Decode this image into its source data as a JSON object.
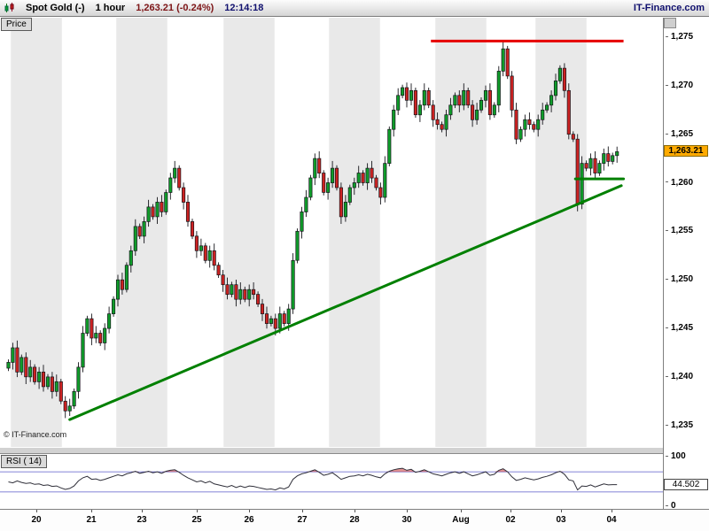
{
  "header": {
    "instrument": "Spot Gold (-)",
    "timeframe": "1 hour",
    "last_price": "1,263.21 (-0.24%)",
    "time": "12:14:18",
    "brand": "IT-Finance.com"
  },
  "price_panel": {
    "tab_label": "Price",
    "watermark": "© IT-Finance.com",
    "axis_ticks": [
      "1,275",
      "1,270",
      "1,265",
      "1,260",
      "1,255",
      "1,250",
      "1,245",
      "1,240",
      "1,235"
    ],
    "price_badge": "1,263.21"
  },
  "rsi_panel": {
    "tab_label": "RSI ( 14)",
    "axis_top": "100",
    "axis_bottom": "0",
    "value_badge": "44.502"
  },
  "colors": {
    "badge_bg": "#ffaa00",
    "brand_text": "#10106e",
    "change_text": "#7d1416"
  },
  "chart_data": {
    "type": "candlestick",
    "title": "Spot Gold (-) 1 hour",
    "last_price": 1263.21,
    "y_ticks": [
      1275,
      1270,
      1265,
      1260,
      1255,
      1250,
      1245,
      1240,
      1235
    ],
    "ylim": [
      1233.5,
      1277
    ],
    "x_ticks": [
      "20",
      "21",
      "23",
      "25",
      "26",
      "27",
      "28",
      "30",
      "Aug",
      "02",
      "03",
      "04"
    ],
    "closes": [
      1241.5,
      1243.0,
      1240.5,
      1242.0,
      1240.0,
      1241.0,
      1239.5,
      1240.5,
      1239.0,
      1240.0,
      1238.5,
      1239.5,
      1237.5,
      1236.5,
      1237.0,
      1238.5,
      1241.0,
      1244.5,
      1246.0,
      1244.0,
      1244.5,
      1243.5,
      1245.0,
      1246.5,
      1248.0,
      1250.0,
      1249.0,
      1251.5,
      1253.0,
      1255.5,
      1254.5,
      1256.0,
      1257.5,
      1256.5,
      1258.0,
      1257.0,
      1259.0,
      1260.5,
      1261.5,
      1259.5,
      1258.0,
      1256.0,
      1254.5,
      1253.0,
      1253.5,
      1252.0,
      1253.0,
      1251.5,
      1250.5,
      1249.5,
      1248.5,
      1249.5,
      1248.0,
      1249.0,
      1248.0,
      1249.0,
      1248.5,
      1247.5,
      1246.5,
      1245.5,
      1246.0,
      1245.0,
      1246.5,
      1245.5,
      1247.0,
      1252.0,
      1255.0,
      1257.0,
      1258.5,
      1260.5,
      1262.5,
      1261.0,
      1259.0,
      1260.0,
      1261.5,
      1259.5,
      1256.5,
      1258.0,
      1259.5,
      1260.0,
      1261.0,
      1260.0,
      1261.5,
      1260.5,
      1259.5,
      1258.5,
      1262.0,
      1265.5,
      1267.5,
      1269.0,
      1269.8,
      1268.5,
      1269.5,
      1267.0,
      1268.0,
      1269.5,
      1268.0,
      1266.5,
      1266.0,
      1265.5,
      1267.0,
      1268.0,
      1269.0,
      1268.0,
      1269.5,
      1268.0,
      1266.5,
      1267.5,
      1268.5,
      1269.5,
      1267.0,
      1268.0,
      1271.5,
      1273.8,
      1271.0,
      1267.5,
      1264.5,
      1265.5,
      1266.5,
      1266.0,
      1265.5,
      1266.5,
      1267.5,
      1268.0,
      1269.0,
      1270.5,
      1271.8,
      1269.5,
      1265.0,
      1264.5,
      1257.8,
      1262.0,
      1261.5,
      1262.5,
      1261.0,
      1262.0,
      1263.0,
      1262.2,
      1262.8,
      1263.2
    ],
    "rsi_period": 14,
    "rsi_last": 44.502,
    "rsi_axis": [
      0,
      100
    ],
    "rsi_levels": [
      30,
      70
    ],
    "rsi_values": [
      50,
      48,
      52,
      49,
      47,
      48,
      45,
      46,
      43,
      44,
      41,
      42,
      38,
      35,
      37,
      42,
      52,
      58,
      61,
      55,
      56,
      53,
      55,
      58,
      61,
      64,
      62,
      66,
      68,
      71,
      67,
      69,
      71,
      68,
      70,
      67,
      71,
      73,
      74,
      69,
      63,
      58,
      54,
      50,
      52,
      48,
      51,
      46,
      44,
      42,
      40,
      43,
      39,
      42,
      39,
      42,
      41,
      39,
      37,
      35,
      36,
      34,
      38,
      36,
      40,
      55,
      62,
      66,
      68,
      71,
      74,
      69,
      63,
      65,
      68,
      62,
      55,
      58,
      61,
      62,
      64,
      62,
      65,
      63,
      60,
      58,
      66,
      71,
      74,
      76,
      77,
      73,
      75,
      69,
      71,
      74,
      70,
      66,
      64,
      62,
      65,
      68,
      70,
      67,
      70,
      66,
      62,
      64,
      67,
      70,
      63,
      65,
      73,
      76,
      70,
      60,
      53,
      55,
      58,
      56,
      54,
      56,
      59,
      61,
      64,
      68,
      71,
      65,
      54,
      52,
      34,
      42,
      41,
      44,
      40,
      43,
      46,
      44,
      44.5,
      44.5
    ],
    "colors": {
      "up": "#0f9d2a",
      "down": "#cc2222"
    },
    "overlays": {
      "support_trendline": {
        "color": "#008000",
        "from": {
          "index": 14,
          "price": 1235.6
        },
        "to": {
          "index": 140,
          "price": 1259.7
        }
      },
      "resistance_line": {
        "color": "#e60000",
        "price": 1274.6,
        "from_index": 96.5,
        "to_index": 140.5
      },
      "recent_support": {
        "color": "#008000",
        "price": 1260.4,
        "from_index": 129.5,
        "to_index": 140.5
      }
    }
  }
}
